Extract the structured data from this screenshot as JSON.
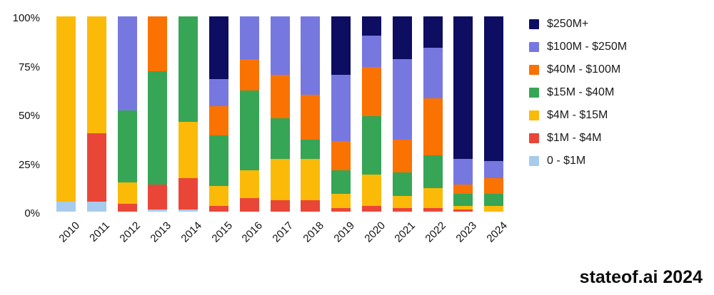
{
  "source_label": "stateof.ai 2024",
  "chart_data": {
    "type": "bar",
    "variant": "stacked-percent-column",
    "title": "",
    "xlabel": "",
    "ylabel": "",
    "ylim": [
      0,
      100
    ],
    "grid": false,
    "legend_position": "right",
    "legend_order": "top-to-bottom is largest bucket to smallest (reverse of stack order)",
    "yticks": [
      {
        "value": 100,
        "label": "100%"
      },
      {
        "value": 75,
        "label": "75%"
      },
      {
        "value": 50,
        "label": "50%"
      },
      {
        "value": 25,
        "label": "25%"
      },
      {
        "value": 0,
        "label": "0%"
      }
    ],
    "categories": [
      "2010",
      "2011",
      "2012",
      "2013",
      "2014",
      "2015",
      "2016",
      "2017",
      "2018",
      "2019",
      "2020",
      "2021",
      "2022",
      "2023",
      "2024"
    ],
    "series": [
      {
        "name": "0 - $1M",
        "color": "#a7cbec",
        "values": [
          5,
          5,
          0,
          1,
          1,
          0,
          0,
          0,
          0,
          0,
          0,
          0,
          0,
          0,
          0
        ]
      },
      {
        "name": "$1M - $4M",
        "color": "#e94638",
        "values": [
          0,
          35,
          4,
          13,
          16,
          3,
          7,
          6,
          6,
          2,
          3,
          2,
          2,
          1,
          0
        ]
      },
      {
        "name": "$4M - $15M",
        "color": "#fbba07",
        "values": [
          95,
          60,
          11,
          0,
          29,
          10,
          14,
          21,
          21,
          7,
          16,
          6,
          10,
          2,
          3
        ]
      },
      {
        "name": "$15M - $40M",
        "color": "#36a556",
        "values": [
          0,
          0,
          37,
          58,
          54,
          26,
          41,
          21,
          10,
          12,
          30,
          12,
          17,
          6,
          6
        ]
      },
      {
        "name": "$40M - $100M",
        "color": "#fa7202",
        "values": [
          0,
          0,
          0,
          28,
          0,
          15,
          16,
          22,
          23,
          15,
          25,
          17,
          29,
          5,
          8
        ]
      },
      {
        "name": "$100M - $250M",
        "color": "#7678e0",
        "values": [
          0,
          0,
          48,
          0,
          0,
          14,
          22,
          30,
          40,
          34,
          16,
          41,
          26,
          13,
          9
        ]
      },
      {
        "name": "$250M+",
        "color": "#0d0d62",
        "values": [
          0,
          0,
          0,
          0,
          0,
          32,
          0,
          0,
          0,
          30,
          10,
          22,
          16,
          73,
          74
        ]
      }
    ]
  }
}
